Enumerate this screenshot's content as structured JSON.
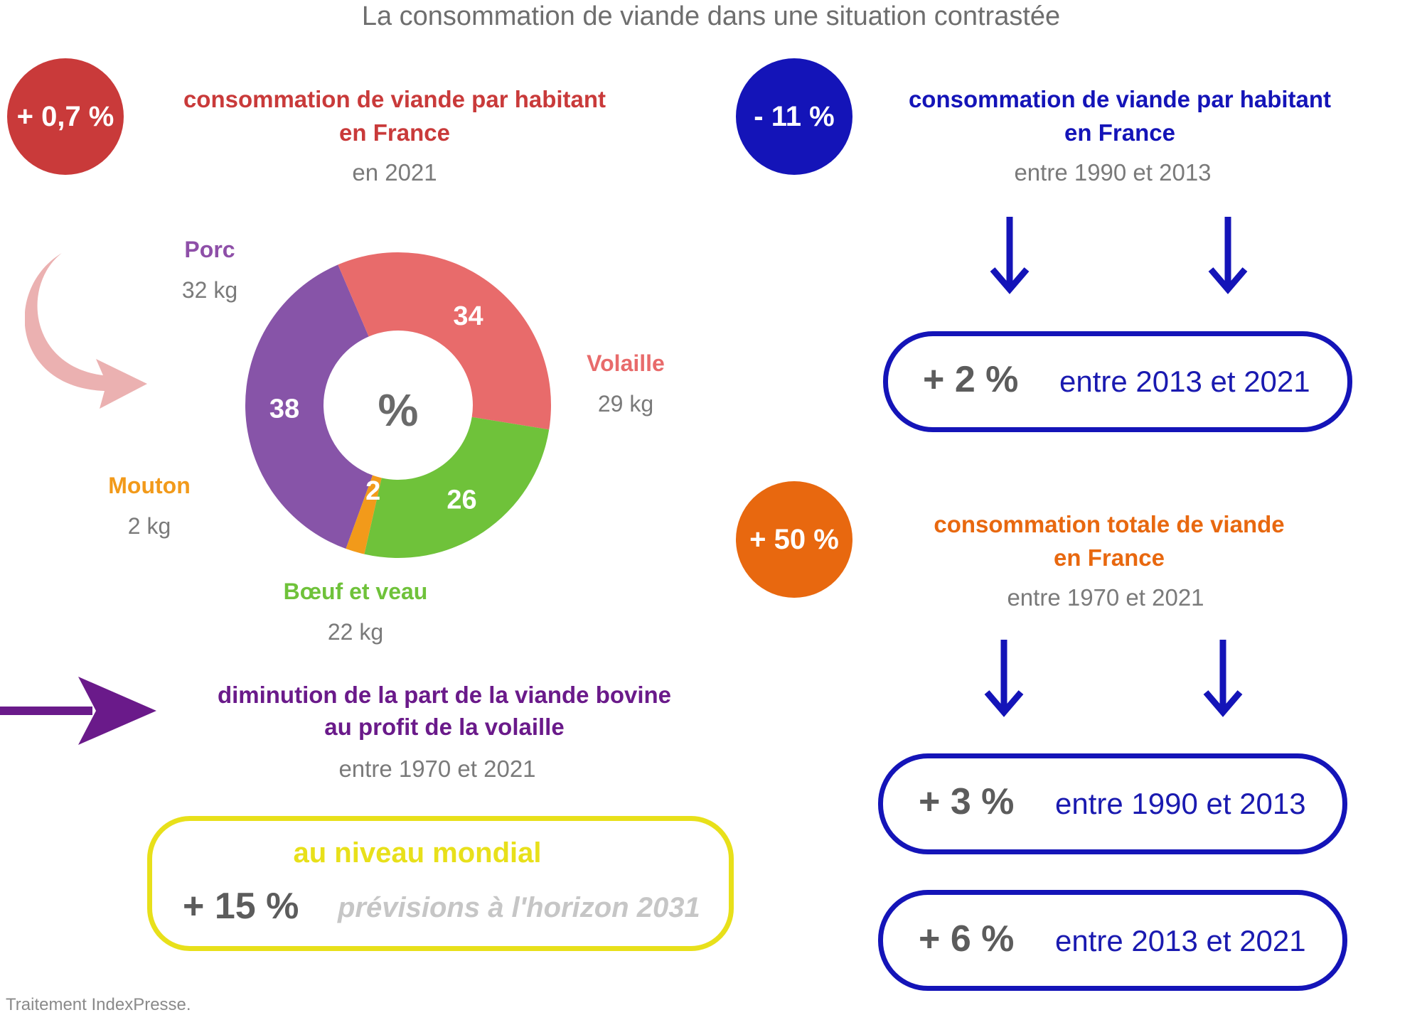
{
  "title": "La consommation de viande dans une situation contrastée",
  "left_block": {
    "badge": "+ 0,7 %",
    "badge_color": "#c93a3a",
    "heading_line1": "consommation de viande par habitant",
    "heading_line2": "en France",
    "heading_color": "#c93a3a",
    "period": "en 2021"
  },
  "chart_data": {
    "type": "pie",
    "variant": "donut",
    "center_label": "%",
    "slices": [
      {
        "name": "Porc",
        "value": 38,
        "kg": "32 kg",
        "color": "#8754a8"
      },
      {
        "name": "Volaille",
        "value": 34,
        "kg": "29 kg",
        "color": "#e86b6b"
      },
      {
        "name": "Bœuf et veau",
        "value": 26,
        "kg": "22 kg",
        "color": "#6fc23a"
      },
      {
        "name": "Mouton",
        "value": 2,
        "kg": "2 kg",
        "color": "#f29a1a"
      }
    ],
    "legend_name_colors": {
      "Porc": "#8e4fa8",
      "Volaille": "#e86b6b",
      "Bœuf et veau": "#6fc23a",
      "Mouton": "#f29a1a"
    }
  },
  "decor": {
    "curved_arrow_color": "#ebb1b1",
    "purple_arrow_color": "#6a1a8a"
  },
  "shift_block": {
    "heading_line1": "diminution de la part de la viande bovine",
    "heading_line2": "au profit de la volaille",
    "heading_color": "#6a1a8a",
    "period": "entre 1970 et 2021"
  },
  "world_box": {
    "label": "au niveau mondial",
    "label_color": "#e8e01a",
    "value": "+ 15 %",
    "note": "prévisions à l'horizon 2031"
  },
  "right_top": {
    "badge": "- 11 %",
    "badge_color": "#1414b8",
    "heading_line1": "consommation de viande par habitant",
    "heading_line2": "en France",
    "heading_color": "#1414b8",
    "period": "entre 1990 et 2013",
    "pill_value": "+ 2 %",
    "pill_text": "entre 2013 et 2021"
  },
  "right_bottom": {
    "badge": "+ 50 %",
    "badge_color": "#e8680f",
    "heading_line1": "consommation totale de viande",
    "heading_line2": "en France",
    "heading_color": "#e8680f",
    "period": "entre 1970 et 2021",
    "pill1_value": "+ 3 %",
    "pill1_text": "entre 1990 et 2013",
    "pill2_value": "+ 6 %",
    "pill2_text": "entre 2013 et 2021"
  },
  "footer": "Traitement IndexPresse."
}
